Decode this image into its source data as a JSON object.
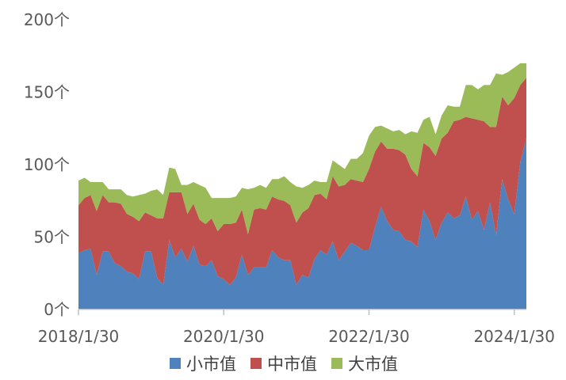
{
  "chart_data": {
    "type": "area",
    "stacked": true,
    "title": "",
    "xlabel": "",
    "ylabel": "",
    "ylim": [
      0,
      200
    ],
    "y_ticks": [
      {
        "value": 0,
        "label": "0个"
      },
      {
        "value": 50,
        "label": "50个"
      },
      {
        "value": 100,
        "label": "100个"
      },
      {
        "value": 150,
        "label": "150个"
      },
      {
        "value": 200,
        "label": "200个"
      }
    ],
    "x_start": "2018/1/30",
    "x_end": "2024/3/30",
    "x_ticks": [
      "2018/1/30",
      "2020/1/30",
      "2022/1/30",
      "2024/1/30"
    ],
    "grid": false,
    "legend_position": "bottom",
    "series": [
      {
        "name": "小市值",
        "color": "#4F81BD",
        "values": [
          39,
          41,
          42,
          24,
          40,
          40,
          32,
          30,
          26,
          25,
          21,
          40,
          40,
          22,
          17,
          48,
          36,
          42,
          33,
          44,
          31,
          30,
          34,
          23,
          21,
          17,
          22,
          38,
          24,
          29,
          29,
          29,
          41,
          36,
          34,
          34,
          17,
          24,
          22,
          35,
          41,
          38,
          47,
          34,
          40,
          46,
          44,
          41,
          41,
          57,
          71,
          61,
          55,
          54,
          48,
          47,
          43,
          69,
          61,
          48,
          60,
          67,
          63,
          65,
          78,
          62,
          68,
          55,
          74,
          51,
          90,
          76,
          66,
          102,
          118
        ],
        "name_label": "小市值"
      },
      {
        "name": "中市值",
        "color": "#C0504D",
        "values": [
          33,
          36,
          37,
          44,
          39,
          34,
          42,
          43,
          40,
          39,
          40,
          27,
          25,
          41,
          46,
          33,
          45,
          39,
          33,
          29,
          31,
          29,
          29,
          31,
          38,
          42,
          38,
          31,
          28,
          40,
          41,
          40,
          37,
          40,
          41,
          38,
          43,
          43,
          48,
          44,
          39,
          38,
          45,
          51,
          46,
          44,
          45,
          47,
          56,
          52,
          45,
          50,
          56,
          56,
          59,
          50,
          49,
          46,
          51,
          58,
          58,
          55,
          67,
          66,
          55,
          70,
          63,
          75,
          52,
          75,
          57,
          65,
          80,
          53,
          42
        ]
      },
      {
        "name": "大市值",
        "color": "#9BBB59",
        "values": [
          17,
          14,
          9,
          20,
          9,
          9,
          9,
          10,
          13,
          14,
          18,
          13,
          17,
          20,
          16,
          17,
          16,
          5,
          20,
          15,
          24,
          25,
          14,
          23,
          18,
          18,
          18,
          15,
          31,
          15,
          16,
          15,
          12,
          14,
          17,
          16,
          25,
          17,
          16,
          10,
          8,
          12,
          11,
          15,
          11,
          14,
          15,
          20,
          23,
          17,
          11,
          14,
          12,
          14,
          14,
          26,
          30,
          16,
          21,
          15,
          16,
          19,
          10,
          9,
          22,
          23,
          21,
          25,
          29,
          37,
          15,
          23,
          21,
          15,
          10
        ]
      }
    ]
  },
  "legend": {
    "items": [
      {
        "label": "小市值",
        "color": "#4F81BD"
      },
      {
        "label": "中市值",
        "color": "#C0504D"
      },
      {
        "label": "大市值",
        "color": "#9BBB59"
      }
    ]
  }
}
